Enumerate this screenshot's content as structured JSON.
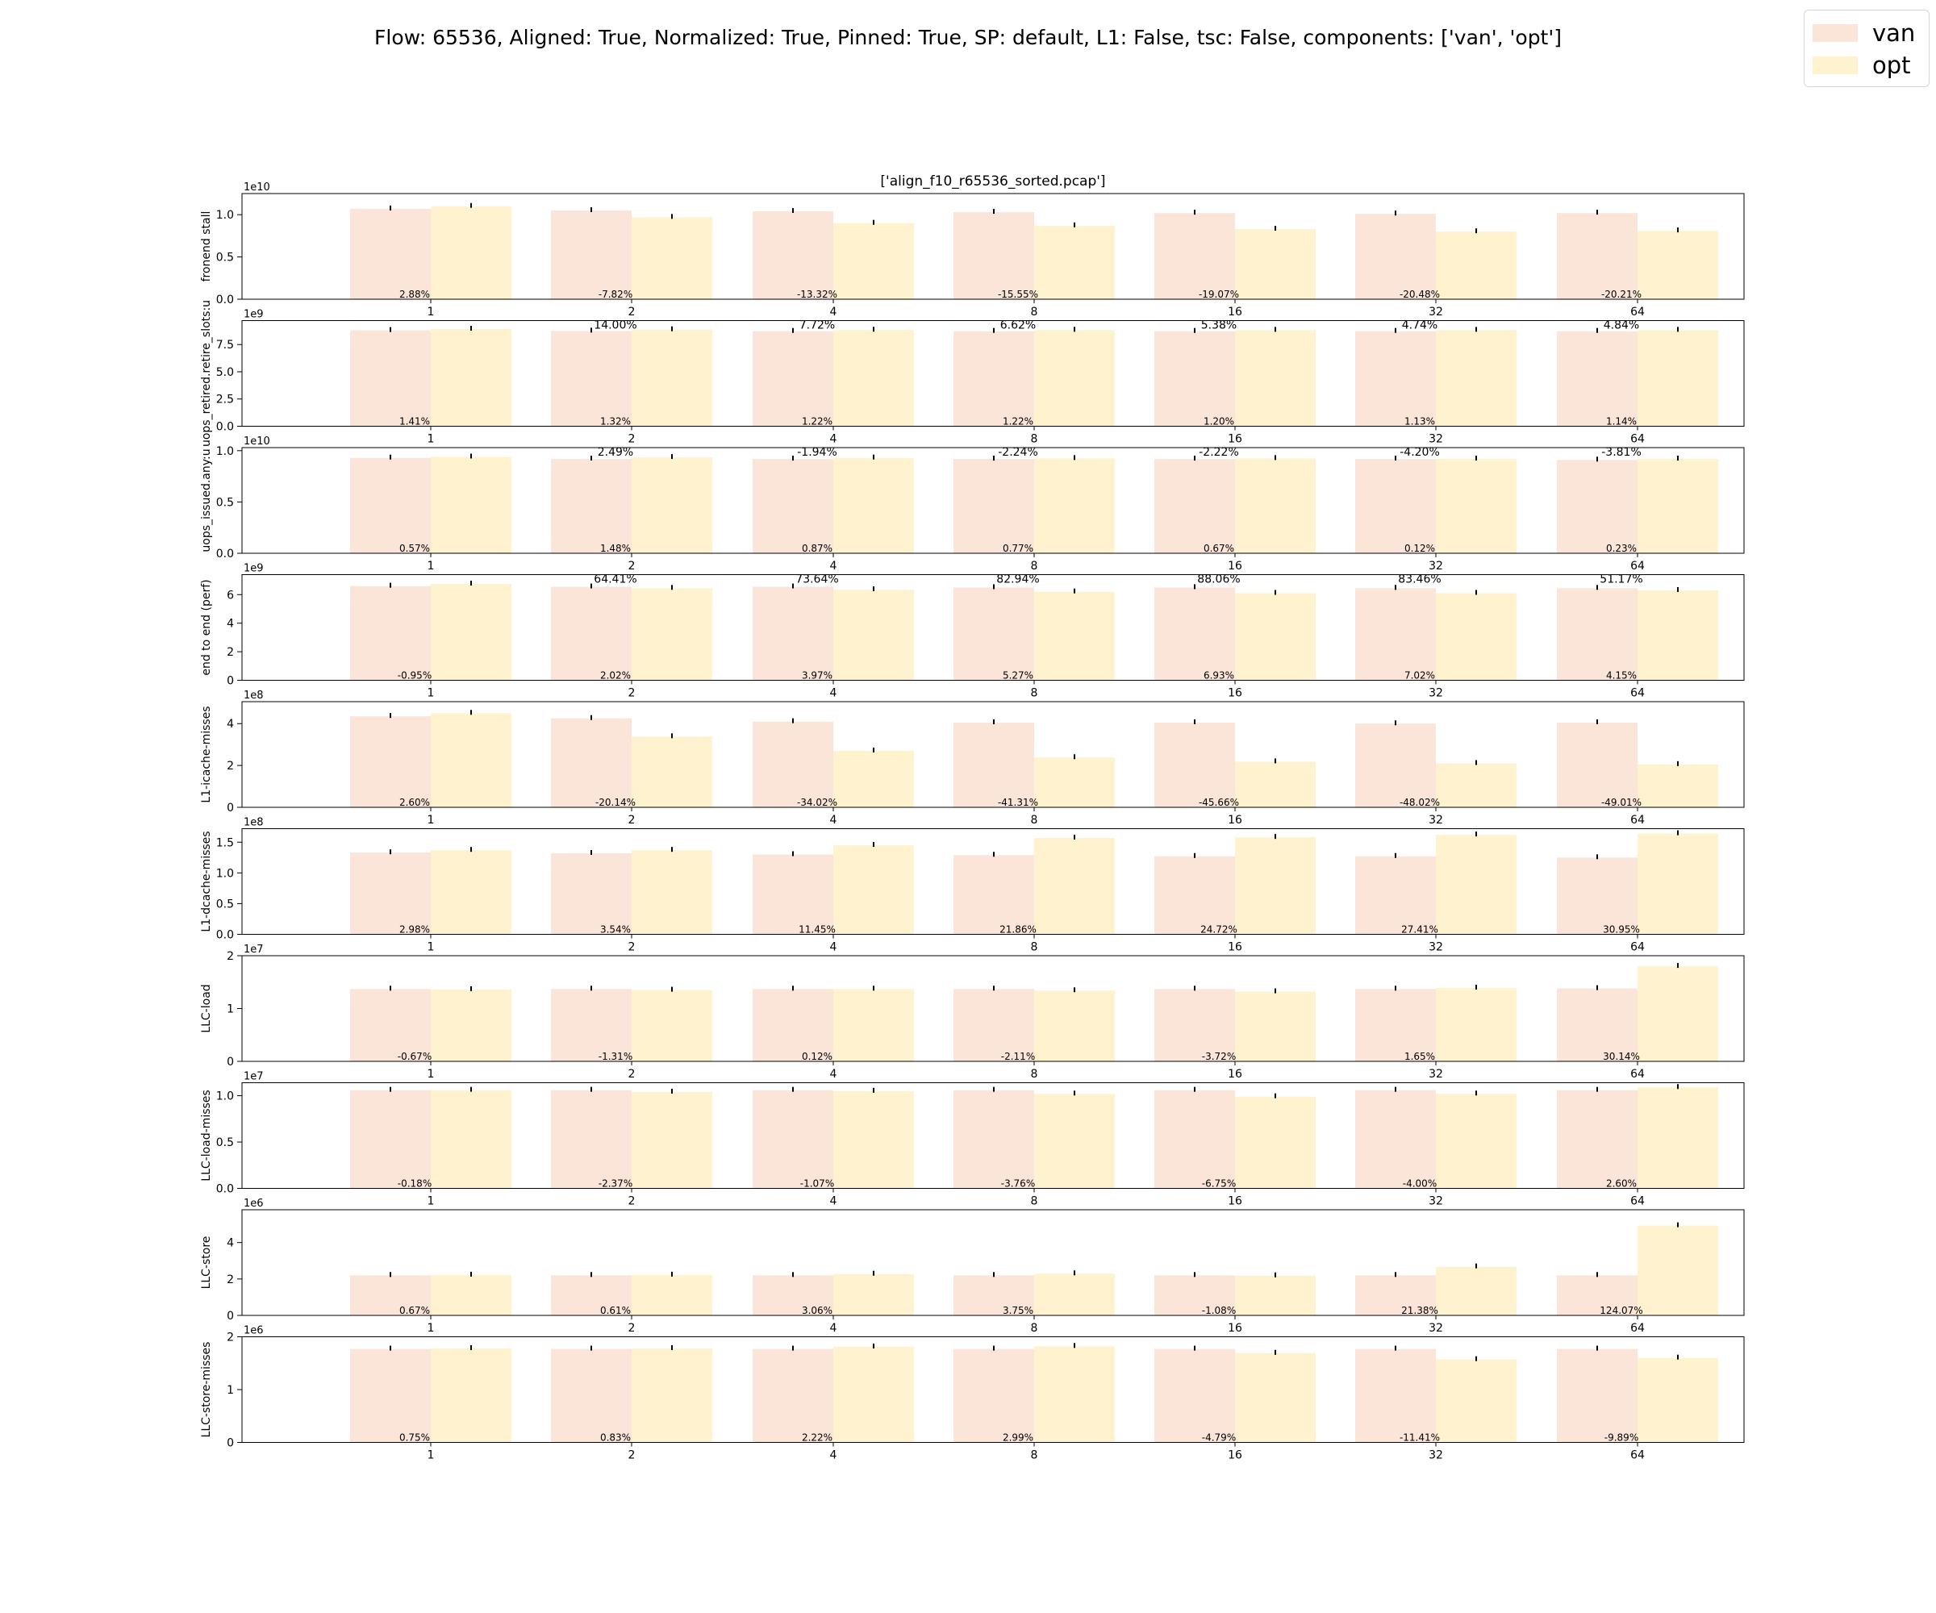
{
  "figure": {
    "suptitle": "Flow: 65536, Aligned: True, Normalized: True, Pinned: True, SP: default, L1: False, tsc: False, components: ['van', 'opt']",
    "subplot_title": "['align_f10_r65536_sorted.pcap']"
  },
  "legend": {
    "placement": "top-right",
    "entries": [
      {
        "label": "van",
        "color": "#fbe5d8"
      },
      {
        "label": "opt",
        "color": "#fff2cf"
      }
    ]
  },
  "chart_data": [
    {
      "type": "bar",
      "ylabel": "fronend stall",
      "exponent": "1e10",
      "categories": [
        "1",
        "2",
        "4",
        "8",
        "16",
        "32",
        "64"
      ],
      "yticks": [
        "0.0",
        "0.5",
        "1.0"
      ],
      "ytick_values": [
        0,
        0.5,
        1.0
      ],
      "ylim": [
        0,
        1.25
      ],
      "series": [
        {
          "name": "van",
          "values": [
            1.07,
            1.05,
            1.04,
            1.03,
            1.02,
            1.01,
            1.02
          ]
        },
        {
          "name": "opt",
          "values": [
            1.1,
            0.97,
            0.9,
            0.87,
            0.83,
            0.8,
            0.81
          ]
        }
      ],
      "low_labels": [
        "2.88%",
        "-7.82%",
        "-13.32%",
        "-15.55%",
        "-19.07%",
        "-20.48%",
        "-20.21%"
      ],
      "high_labels": []
    },
    {
      "type": "bar",
      "ylabel": "uops_retired.retire_slots:u",
      "exponent": "1e9",
      "categories": [
        "1",
        "2",
        "4",
        "8",
        "16",
        "32",
        "64"
      ],
      "yticks": [
        "0.0",
        "2.5",
        "5.0",
        "7.5"
      ],
      "ytick_values": [
        0,
        2.5,
        5.0,
        7.5
      ],
      "ylim": [
        0,
        9.7
      ],
      "series": [
        {
          "name": "van",
          "values": [
            8.8,
            8.75,
            8.72,
            8.72,
            8.72,
            8.72,
            8.72
          ]
        },
        {
          "name": "opt",
          "values": [
            8.92,
            8.87,
            8.83,
            8.83,
            8.82,
            8.82,
            8.82
          ]
        }
      ],
      "low_labels": [
        "1.41%",
        "1.32%",
        "1.22%",
        "1.22%",
        "1.20%",
        "1.13%",
        "1.14%"
      ],
      "high_labels": [
        "",
        "14.00%",
        "7.72%",
        "6.62%",
        "5.38%",
        "4.74%",
        "4.84%"
      ]
    },
    {
      "type": "bar",
      "ylabel": "uops_issued.any:u",
      "exponent": "1e10",
      "categories": [
        "1",
        "2",
        "4",
        "8",
        "16",
        "32",
        "64"
      ],
      "yticks": [
        "0.0",
        "0.5",
        "1.0"
      ],
      "ytick_values": [
        0,
        0.5,
        1.0
      ],
      "ylim": [
        0,
        1.03
      ],
      "series": [
        {
          "name": "van",
          "values": [
            0.93,
            0.92,
            0.92,
            0.92,
            0.92,
            0.92,
            0.91
          ]
        },
        {
          "name": "opt",
          "values": [
            0.94,
            0.935,
            0.93,
            0.925,
            0.925,
            0.92,
            0.92
          ]
        }
      ],
      "low_labels": [
        "0.57%",
        "1.48%",
        "0.87%",
        "0.77%",
        "0.67%",
        "0.12%",
        "0.23%"
      ],
      "high_labels": [
        "",
        "2.49%",
        "-1.94%",
        "-2.24%",
        "-2.22%",
        "-4.20%",
        "-3.81%"
      ]
    },
    {
      "type": "bar",
      "ylabel": "end to end (perf)",
      "exponent": "1e9",
      "categories": [
        "1",
        "2",
        "4",
        "8",
        "16",
        "32",
        "64"
      ],
      "yticks": [
        "0",
        "2",
        "4",
        "6"
      ],
      "ytick_values": [
        0,
        2,
        4,
        6
      ],
      "ylim": [
        0,
        7.4
      ],
      "series": [
        {
          "name": "van",
          "values": [
            6.6,
            6.55,
            6.55,
            6.5,
            6.5,
            6.45,
            6.45
          ]
        },
        {
          "name": "opt",
          "values": [
            6.75,
            6.45,
            6.35,
            6.2,
            6.1,
            6.1,
            6.3
          ]
        }
      ],
      "low_labels": [
        "-0.95%",
        "2.02%",
        "3.97%",
        "5.27%",
        "6.93%",
        "7.02%",
        "4.15%"
      ],
      "high_labels": [
        "",
        "64.41%",
        "73.64%",
        "82.94%",
        "88.06%",
        "83.46%",
        "51.17%"
      ]
    },
    {
      "type": "bar",
      "ylabel": "L1-icache-misses",
      "exponent": "1e8",
      "categories": [
        "1",
        "2",
        "4",
        "8",
        "16",
        "32",
        "64"
      ],
      "yticks": [
        "0",
        "2",
        "4"
      ],
      "ytick_values": [
        0,
        2,
        4
      ],
      "ylim": [
        0,
        5.05
      ],
      "series": [
        {
          "name": "van",
          "values": [
            4.35,
            4.25,
            4.1,
            4.05,
            4.05,
            4.0,
            4.05
          ]
        },
        {
          "name": "opt",
          "values": [
            4.5,
            3.38,
            2.7,
            2.38,
            2.18,
            2.1,
            2.05
          ]
        }
      ],
      "low_labels": [
        "2.60%",
        "-20.14%",
        "-34.02%",
        "-41.31%",
        "-45.66%",
        "-48.02%",
        "-49.01%"
      ],
      "high_labels": []
    },
    {
      "type": "bar",
      "ylabel": "L1-dcache-misses",
      "exponent": "1e8",
      "categories": [
        "1",
        "2",
        "4",
        "8",
        "16",
        "32",
        "64"
      ],
      "yticks": [
        "0.0",
        "0.5",
        "1.0",
        "1.5"
      ],
      "ytick_values": [
        0,
        0.5,
        1.0,
        1.5
      ],
      "ylim": [
        0,
        1.72
      ],
      "series": [
        {
          "name": "van",
          "values": [
            1.33,
            1.32,
            1.3,
            1.29,
            1.27,
            1.27,
            1.25
          ]
        },
        {
          "name": "opt",
          "values": [
            1.37,
            1.37,
            1.45,
            1.57,
            1.58,
            1.62,
            1.64
          ]
        }
      ],
      "low_labels": [
        "2.98%",
        "3.54%",
        "11.45%",
        "21.86%",
        "24.72%",
        "27.41%",
        "30.95%"
      ],
      "high_labels": []
    },
    {
      "type": "bar",
      "ylabel": "LLC-load",
      "exponent": "1e7",
      "categories": [
        "1",
        "2",
        "4",
        "8",
        "16",
        "32",
        "64"
      ],
      "yticks": [
        "0",
        "1",
        "2"
      ],
      "ytick_values": [
        0,
        1,
        2
      ],
      "ylim": [
        0,
        2.0
      ],
      "series": [
        {
          "name": "van",
          "values": [
            1.37,
            1.37,
            1.37,
            1.37,
            1.37,
            1.37,
            1.38
          ]
        },
        {
          "name": "opt",
          "values": [
            1.36,
            1.35,
            1.37,
            1.34,
            1.32,
            1.39,
            1.8
          ]
        }
      ],
      "low_labels": [
        "-0.67%",
        "-1.31%",
        "0.12%",
        "-2.11%",
        "-3.72%",
        "1.65%",
        "30.14%"
      ],
      "high_labels": []
    },
    {
      "type": "bar",
      "ylabel": "LLC-load-misses",
      "exponent": "1e7",
      "categories": [
        "1",
        "2",
        "4",
        "8",
        "16",
        "32",
        "64"
      ],
      "yticks": [
        "0.0",
        "0.5",
        "1.0"
      ],
      "ytick_values": [
        0,
        0.5,
        1.0
      ],
      "ylim": [
        0,
        1.14
      ],
      "series": [
        {
          "name": "van",
          "values": [
            1.06,
            1.06,
            1.06,
            1.06,
            1.06,
            1.06,
            1.06
          ]
        },
        {
          "name": "opt",
          "values": [
            1.06,
            1.04,
            1.05,
            1.02,
            0.99,
            1.02,
            1.09
          ]
        }
      ],
      "low_labels": [
        "-0.18%",
        "-2.37%",
        "-1.07%",
        "-3.76%",
        "-6.75%",
        "-4.00%",
        "2.60%"
      ],
      "high_labels": []
    },
    {
      "type": "bar",
      "ylabel": "LLC-store",
      "exponent": "1e6",
      "categories": [
        "1",
        "2",
        "4",
        "8",
        "16",
        "32",
        "64"
      ],
      "yticks": [
        "0",
        "2",
        "4"
      ],
      "ytick_values": [
        0,
        2,
        4
      ],
      "ylim": [
        0,
        5.8
      ],
      "series": [
        {
          "name": "van",
          "values": [
            2.2,
            2.2,
            2.2,
            2.2,
            2.2,
            2.2,
            2.2
          ]
        },
        {
          "name": "opt",
          "values": [
            2.22,
            2.22,
            2.27,
            2.29,
            2.18,
            2.67,
            4.93
          ]
        }
      ],
      "low_labels": [
        "0.67%",
        "0.61%",
        "3.06%",
        "3.75%",
        "-1.08%",
        "21.38%",
        "124.07%"
      ],
      "high_labels": []
    },
    {
      "type": "bar",
      "ylabel": "LLC-store-misses",
      "exponent": "1e6",
      "categories": [
        "1",
        "2",
        "4",
        "8",
        "16",
        "32",
        "64"
      ],
      "yticks": [
        "0",
        "1",
        "2"
      ],
      "ytick_values": [
        0,
        1,
        2
      ],
      "ylim": [
        0,
        2.0
      ],
      "series": [
        {
          "name": "van",
          "values": [
            1.77,
            1.77,
            1.77,
            1.77,
            1.77,
            1.77,
            1.77
          ]
        },
        {
          "name": "opt",
          "values": [
            1.78,
            1.78,
            1.81,
            1.82,
            1.69,
            1.57,
            1.6
          ]
        }
      ],
      "low_labels": [
        "0.75%",
        "0.83%",
        "2.22%",
        "2.99%",
        "-4.79%",
        "-11.41%",
        "-9.89%"
      ],
      "high_labels": []
    }
  ]
}
